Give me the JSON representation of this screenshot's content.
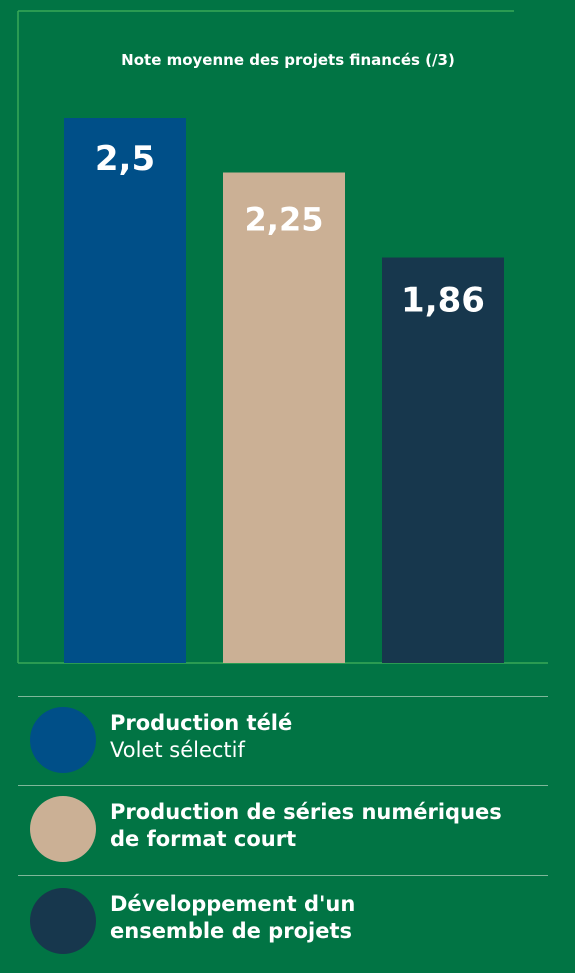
{
  "chart_data": {
    "type": "bar",
    "title": "Note moyenne des projets financés (/3)",
    "categories": [
      "Production télé Volet sélectif",
      "Production de séries numériques de format court",
      "Développement d'un ensemble de projets"
    ],
    "values": [
      2.5,
      2.25,
      1.86
    ],
    "value_labels": [
      "2,5",
      "2,25",
      "1,86"
    ],
    "ylim": [
      0,
      3
    ],
    "grid": false,
    "legend_placement": "bottom",
    "colors": [
      "#004f88",
      "#cbb095",
      "#17374d"
    ]
  },
  "legend": {
    "items": [
      {
        "line1": "Production télé",
        "line2": "Volet sélectif",
        "line2_bold": false,
        "color": "#004f88"
      },
      {
        "line1": "Production de séries numériques",
        "line2": "de format court",
        "line2_bold": true,
        "color": "#cbb095"
      },
      {
        "line1": "Développement d'un",
        "line2": "ensemble de projets",
        "line2_bold": true,
        "color": "#17374d"
      }
    ]
  },
  "colors": {
    "background": "#017444",
    "frame": "#39a857",
    "label_on_dark": "#ffffff"
  }
}
